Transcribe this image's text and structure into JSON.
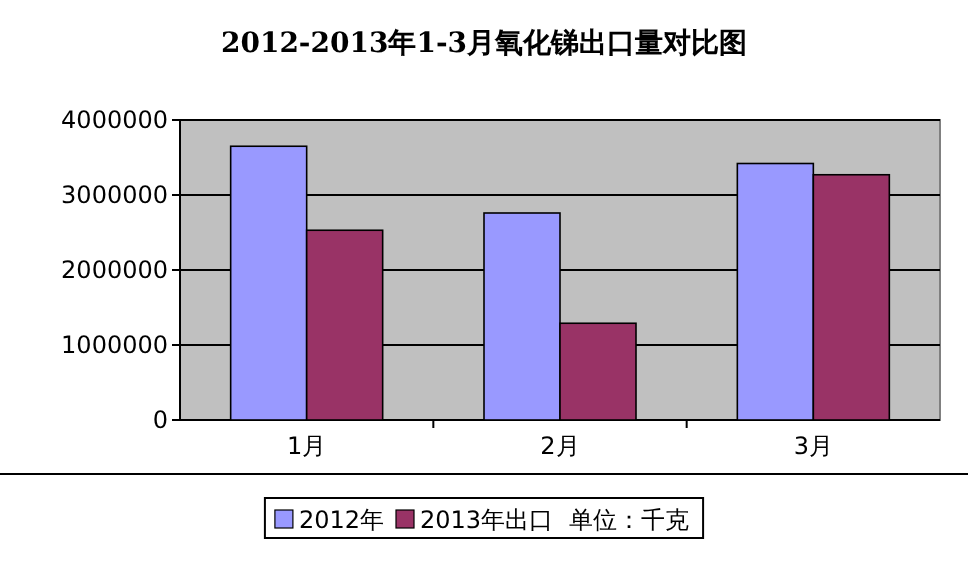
{
  "chart_data": {
    "type": "bar",
    "title": "2012-2013年1-3月氧化锑出口量对比图",
    "categories": [
      "1月",
      "2月",
      "3月"
    ],
    "series": [
      {
        "name": "2012年",
        "color": "#9999ff",
        "values": [
          3650000,
          2760000,
          3420000
        ]
      },
      {
        "name": "2013年出口",
        "color": "#993366",
        "values": [
          2530000,
          1290000,
          3270000
        ]
      }
    ],
    "ylim": [
      0,
      4000000
    ],
    "yticks": [
      0,
      1000000,
      2000000,
      3000000,
      4000000
    ],
    "grid": "y",
    "legend": "bottom",
    "annotations": [
      "单位：千克"
    ]
  }
}
